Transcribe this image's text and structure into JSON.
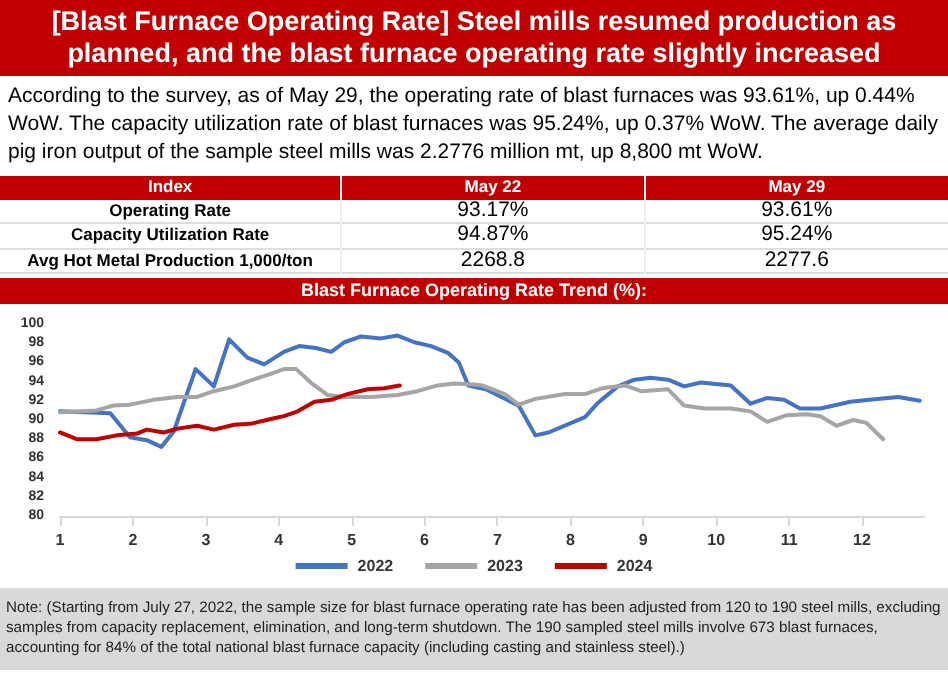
{
  "chart_data": [
    {
      "type": "other",
      "title": "[Blast Furnace Operating Rate] Steel mills resumed production as planned, and the blast furnace operating rate slightly increased",
      "subtitle": "According to the survey, as of May 29, the operating rate of blast furnaces was 93.61%, up 0.44% WoW. The capacity utilization rate of blast furnaces was 95.24%, up 0.37% WoW. The average daily pig iron output of the sample steel mills was 2.2776 million mt, up 8,800 mt WoW.",
      "annotations": [
        "Index",
        "May 22",
        "May 29",
        "Operating Rate",
        "93.17%",
        "93.61%",
        "Capacity Utilization Rate",
        "94.87%",
        "95.24%",
        "Avg Hot Metal Production 1,000/ton",
        "2268.8",
        "2277.6"
      ]
    },
    {
      "type": "line",
      "title": "Blast Furnace Operating Rate Trend (%):",
      "xlim": [
        1,
        12.85
      ],
      "xticks": [
        1,
        2,
        3,
        4,
        5,
        6,
        7,
        8,
        9,
        10,
        11,
        12
      ],
      "ylim": [
        80,
        100
      ],
      "yticks": [
        80,
        82,
        84,
        86,
        88,
        90,
        92,
        94,
        96,
        98,
        100
      ],
      "legend": "bottom",
      "series": [
        {
          "name": "2022",
          "color": "#4472c4",
          "x": [
            1,
            1.69,
            1.96,
            2.19,
            2.39,
            2.56,
            2.86,
            3.11,
            3.32,
            3.57,
            3.8,
            4.07,
            4.28,
            4.51,
            4.72,
            4.9,
            5.13,
            5.4,
            5.63,
            5.86,
            6.09,
            6.32,
            6.47,
            6.6,
            6.84,
            7.29,
            7.52,
            7.7,
            8.2,
            8.38,
            8.65,
            8.88,
            9.1,
            9.34,
            9.56,
            9.79,
            10.2,
            10.47,
            10.7,
            10.93,
            11.15,
            11.43,
            11.84,
            12.1,
            12.5,
            12.79
          ],
          "values": [
            90.9,
            90.7,
            88.2,
            87.9,
            87.2,
            88.8,
            95.3,
            93.5,
            98.4,
            96.5,
            95.8,
            97.1,
            97.7,
            97.5,
            97.1,
            98.1,
            98.7,
            98.5,
            98.8,
            98.1,
            97.7,
            97.0,
            96.0,
            93.6,
            93.2,
            91.5,
            88.4,
            88.7,
            90.3,
            91.8,
            93.5,
            94.2,
            94.4,
            94.2,
            93.5,
            93.9,
            93.6,
            91.7,
            92.3,
            92.1,
            91.2,
            91.2,
            91.9,
            92.1,
            92.4,
            92.0
          ]
        },
        {
          "name": "2023",
          "color": "#a5a5a5",
          "x": [
            1,
            1.5,
            1.73,
            1.96,
            2.28,
            2.61,
            2.88,
            3.11,
            3.39,
            3.61,
            3.89,
            4.07,
            4.24,
            4.44,
            4.67,
            4.9,
            5.27,
            5.63,
            5.9,
            6.18,
            6.41,
            6.68,
            6.79,
            7.1,
            7.29,
            7.52,
            7.93,
            8.2,
            8.43,
            8.75,
            8.97,
            9.34,
            9.56,
            9.84,
            10.2,
            10.47,
            10.7,
            10.97,
            11.25,
            11.43,
            11.65,
            11.88,
            12.06,
            12.29
          ],
          "values": [
            90.8,
            91.0,
            91.5,
            91.6,
            92.1,
            92.4,
            92.4,
            93.0,
            93.5,
            94.1,
            94.8,
            95.3,
            95.3,
            93.9,
            92.6,
            92.4,
            92.4,
            92.6,
            93.0,
            93.6,
            93.8,
            93.7,
            93.6,
            92.7,
            91.6,
            92.2,
            92.7,
            92.7,
            93.3,
            93.6,
            93.0,
            93.2,
            91.5,
            91.2,
            91.2,
            90.9,
            89.8,
            90.5,
            90.6,
            90.4,
            89.4,
            90.0,
            89.7,
            88.0
          ]
        },
        {
          "name": "2024",
          "color": "#c00000",
          "x": [
            1,
            1.23,
            1.5,
            1.78,
            2.06,
            2.19,
            2.42,
            2.61,
            2.88,
            3.11,
            3.39,
            3.61,
            3.89,
            4.07,
            4.26,
            4.49,
            4.72,
            4.94,
            5.22,
            5.45,
            5.66
          ],
          "values": [
            88.7,
            88.0,
            88.0,
            88.4,
            88.6,
            89.0,
            88.7,
            89.1,
            89.4,
            89.0,
            89.5,
            89.6,
            90.1,
            90.4,
            90.9,
            91.9,
            92.1,
            92.7,
            93.2,
            93.3,
            93.6
          ]
        }
      ],
      "annotations": [
        "Note: (Starting from July 27, 2022, the sample size for blast furnace operating rate has been adjusted from 120 to 190 steel mills, excluding samples from capacity replacement, elimination, and long-term shutdown. The 190 sampled steel mills involve 673 blast furnaces, accounting for 84% of the total national blast furnace capacity (including casting and stainless steel).)"
      ]
    }
  ]
}
